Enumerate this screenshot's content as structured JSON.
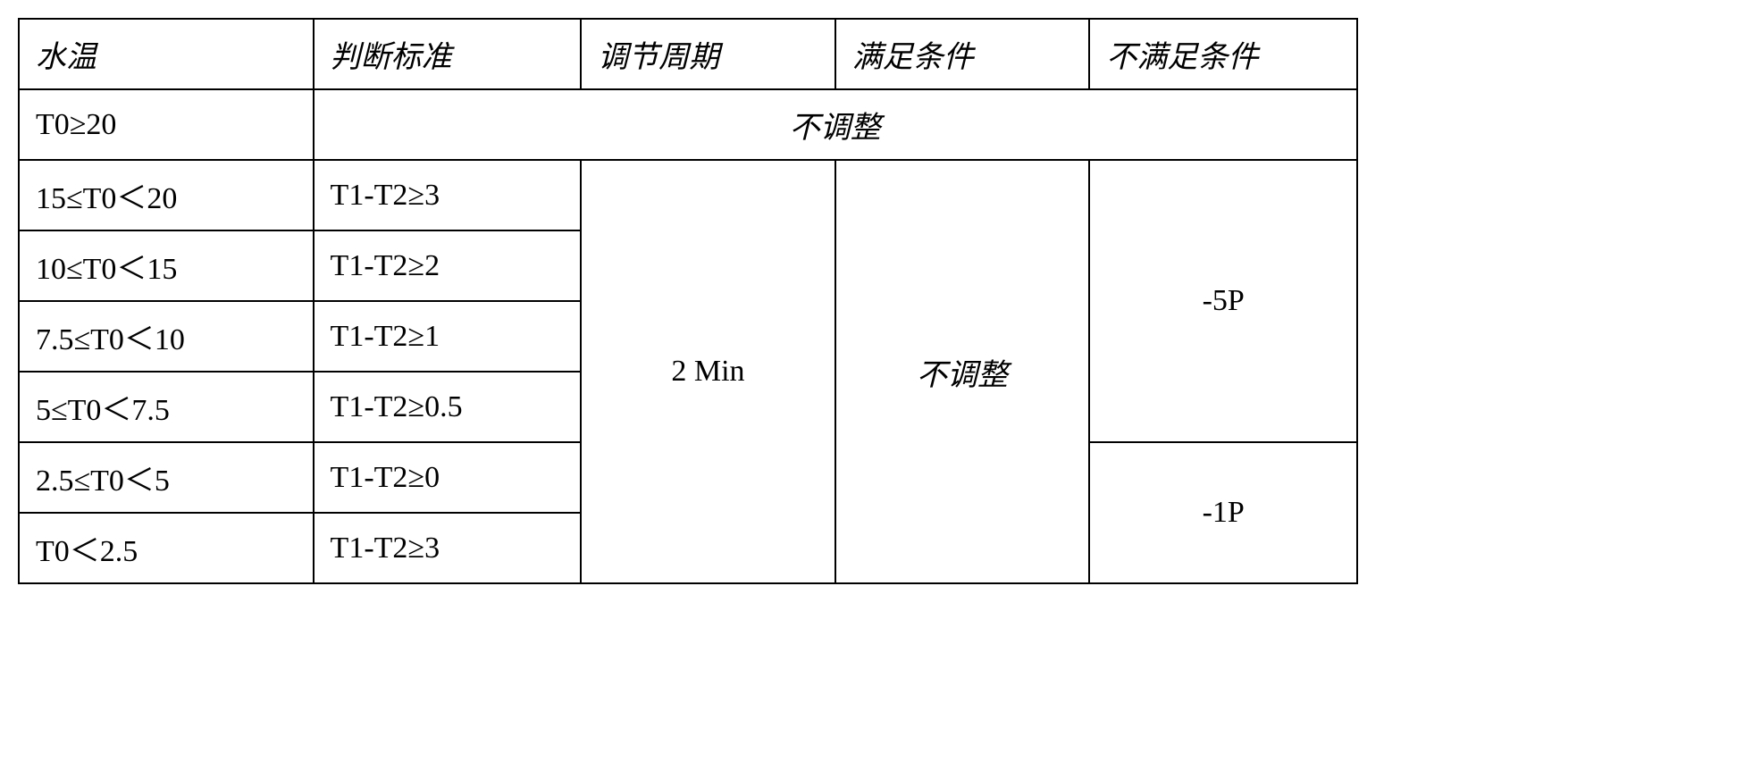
{
  "table": {
    "headers": [
      "水温",
      "判断标准",
      "调节周期",
      "满足条件",
      "不满足条件"
    ],
    "row_no_adjust": {
      "temp": "T0≥20",
      "label": "不调整"
    },
    "rows": [
      {
        "temp": "15≤T0＜20",
        "criteria": "T1-T2≥3"
      },
      {
        "temp": "10≤T0＜15",
        "criteria": "T1-T2≥2"
      },
      {
        "temp": "7.5≤T0＜10",
        "criteria": "T1-T2≥1"
      },
      {
        "temp": "5≤T0＜7.5",
        "criteria": "T1-T2≥0.5"
      },
      {
        "temp": "2.5≤T0＜5",
        "criteria": "T1-T2≥0"
      },
      {
        "temp": "T0＜2.5",
        "criteria": "T1-T2≥3"
      }
    ],
    "period": "2 Min",
    "satisfied": "不调整",
    "not_satisfied_upper": "-5P",
    "not_satisfied_lower": "-1P",
    "column_widths": [
      "22%",
      "20%",
      "19%",
      "19%",
      "20%"
    ],
    "border_color": "#000000",
    "border_width": 2,
    "font_size": 34,
    "background_color": "#ffffff",
    "text_color": "#000000"
  }
}
